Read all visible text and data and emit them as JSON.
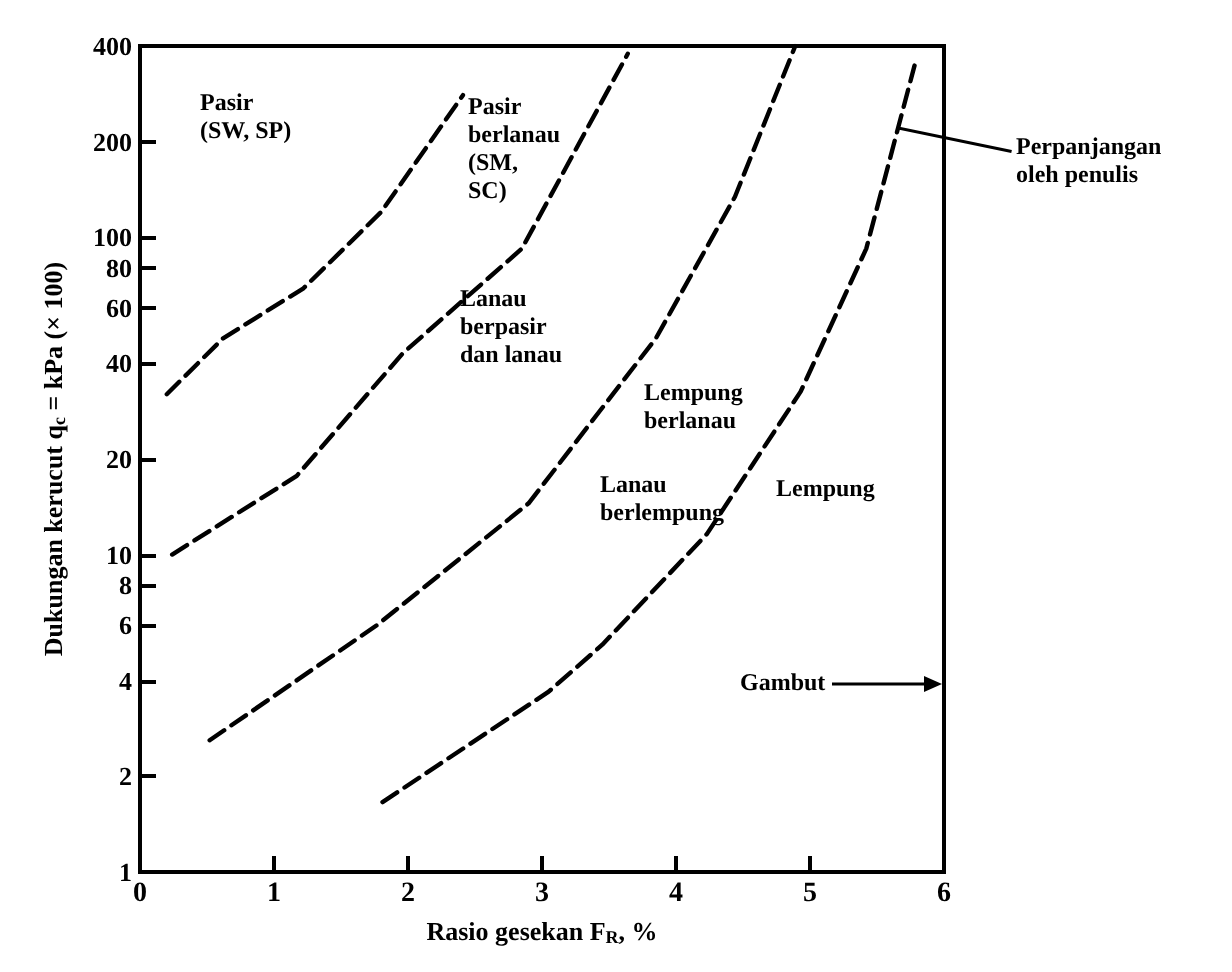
{
  "chart_data": {
    "type": "line",
    "xlabel": "Rasio gesekan F$_{R}$, %",
    "ylabel": "Dukungan kerucut q$_{c}$ = kPa (× 100)",
    "xlim": [
      0,
      6
    ],
    "xticks": [
      0,
      1,
      2,
      3,
      4,
      5,
      6
    ],
    "ylim": [
      1,
      400
    ],
    "yticks": [
      1,
      2,
      4,
      6,
      8,
      10,
      20,
      40,
      60,
      80,
      100,
      200,
      400
    ],
    "log": "y",
    "grid": false,
    "marker": "none",
    "line_style": "dashed",
    "series": [
      {
        "color": "#000000",
        "x": [
          0.2,
          0.62,
          1.22,
          1.8,
          2.41
        ],
        "values": [
          32,
          48,
          69,
          120,
          280
        ]
      },
      {
        "color": "#000000",
        "x": [
          0.24,
          1.17,
          1.96,
          2.85,
          3.64
        ],
        "values": [
          10,
          17.7,
          43,
          92,
          378
        ]
      },
      {
        "color": "#000000",
        "x": [
          0.52,
          1.77,
          2.9,
          3.85,
          4.44,
          4.89
        ],
        "values": [
          2.6,
          6,
          14.5,
          48,
          134,
          400
        ]
      },
      {
        "color": "#000000",
        "x": [
          1.81,
          3.05,
          3.45,
          4.23,
          4.93,
          5.42,
          5.78
        ],
        "values": [
          1.66,
          3.7,
          5.2,
          11.6,
          32.6,
          92,
          347
        ]
      }
    ],
    "annotations": [
      "Pasir\n(SW, SP)",
      "Pasir\nberlanau\n(SM,\nSC)",
      "Lanau\nberpasir\ndan lanau",
      "Lempung\nberlanau",
      "Lanau\nberlempung",
      "Lempung",
      "Gambut",
      {
        "text": "Perpanjangan\noleh penulis",
        "x": 5.66,
        "y": 220
      }
    ]
  }
}
